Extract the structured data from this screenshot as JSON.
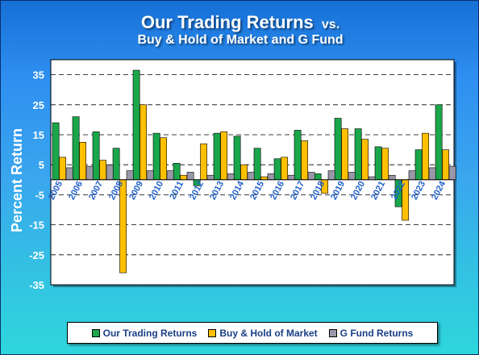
{
  "chart_data": {
    "type": "bar",
    "title": "Our Trading Returns",
    "title_suffix": "vs.",
    "subtitle": "Buy & Hold of Market and G Fund",
    "xlabel": "",
    "ylabel": "Percent Return",
    "ylim": [
      -35,
      40
    ],
    "yticks": [
      35,
      25,
      15,
      5,
      -5,
      -15,
      -25,
      -35
    ],
    "grid": true,
    "legend_position": "bottom",
    "categories": [
      "2005",
      "2006",
      "2007",
      "2008",
      "2009",
      "2010",
      "2011",
      "2012",
      "2013",
      "2014",
      "2015",
      "2016",
      "2017",
      "2018",
      "2019",
      "2020",
      "2021",
      "2022",
      "2023",
      "2024"
    ],
    "series": [
      {
        "name": "Our Trading Returns",
        "color": "#1aa64a",
        "values": [
          19,
          21,
          16,
          10.5,
          36.5,
          15.5,
          5.5,
          -2,
          15.5,
          14.5,
          10.5,
          7,
          16.5,
          2,
          20.5,
          17,
          11,
          -9,
          10,
          25
        ]
      },
      {
        "name": "Buy & Hold of Market",
        "color": "#ffc000",
        "values": [
          7.5,
          12.5,
          6.5,
          -31,
          25,
          14,
          1.5,
          12,
          16,
          5,
          1,
          7.5,
          13,
          -4.5,
          17,
          13.5,
          10.5,
          -13.5,
          15.5,
          10
        ]
      },
      {
        "name": "G Fund Returns",
        "color": "#9a98a8",
        "values": [
          4,
          4.5,
          5,
          3,
          3,
          3,
          2.5,
          1.5,
          2,
          2.5,
          2,
          1.5,
          2.5,
          3,
          2.5,
          1,
          1.5,
          3,
          4,
          4.5
        ]
      }
    ]
  }
}
